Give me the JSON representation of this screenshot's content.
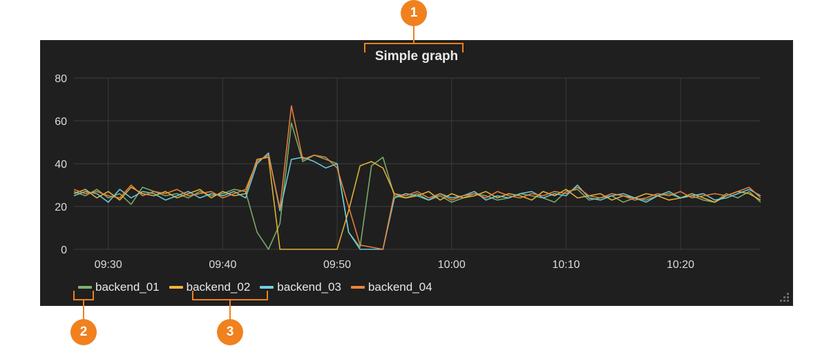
{
  "panel": {
    "title": "Simple graph"
  },
  "callouts": [
    "1",
    "2",
    "3"
  ],
  "colors": {
    "panel_bg": "#1f1f1f",
    "grid": "#3d3d3d",
    "callout": "#f0811e"
  },
  "chart_data": {
    "type": "line",
    "title": "Simple graph",
    "xlabel": "",
    "ylabel": "",
    "ylim": [
      0,
      80
    ],
    "yticks": [
      0,
      20,
      40,
      60,
      80
    ],
    "xlim": [
      "09:27",
      "10:27"
    ],
    "xticks": [
      "09:30",
      "09:40",
      "09:50",
      "10:00",
      "10:10",
      "10:20"
    ],
    "grid": true,
    "legend_position": "bottom-left",
    "x": [
      "09:27",
      "09:28",
      "09:29",
      "09:30",
      "09:31",
      "09:32",
      "09:33",
      "09:34",
      "09:35",
      "09:36",
      "09:37",
      "09:38",
      "09:39",
      "09:40",
      "09:41",
      "09:42",
      "09:43",
      "09:44",
      "09:45",
      "09:46",
      "09:47",
      "09:48",
      "09:49",
      "09:50",
      "09:51",
      "09:52",
      "09:53",
      "09:54",
      "09:55",
      "09:56",
      "09:57",
      "09:58",
      "09:59",
      "10:00",
      "10:01",
      "10:02",
      "10:03",
      "10:04",
      "10:05",
      "10:06",
      "10:07",
      "10:08",
      "10:09",
      "10:10",
      "10:11",
      "10:12",
      "10:13",
      "10:14",
      "10:15",
      "10:16",
      "10:17",
      "10:18",
      "10:19",
      "10:20",
      "10:21",
      "10:22",
      "10:23",
      "10:24",
      "10:25",
      "10:26",
      "10:27"
    ],
    "series": [
      {
        "name": "backend_01",
        "color": "#7eb26d",
        "values": [
          27,
          25,
          28,
          24,
          26,
          21,
          29,
          27,
          25,
          26,
          24,
          27,
          25,
          26,
          28,
          27,
          8,
          0,
          12,
          59,
          41,
          44,
          42,
          40,
          8,
          1,
          39,
          43,
          25,
          24,
          26,
          23,
          25,
          22,
          24,
          26,
          25,
          23,
          24,
          26,
          25,
          24,
          22,
          27,
          28,
          23,
          24,
          25,
          22,
          24,
          23,
          25,
          26,
          24,
          25,
          23,
          22,
          26,
          24,
          27,
          22
        ]
      },
      {
        "name": "backend_02",
        "color": "#eab839",
        "values": [
          26,
          28,
          24,
          27,
          23,
          29,
          26,
          25,
          27,
          24,
          26,
          28,
          24,
          27,
          25,
          26,
          42,
          43,
          0,
          0,
          0,
          0,
          0,
          0,
          18,
          39,
          41,
          38,
          26,
          24,
          25,
          27,
          23,
          26,
          24,
          25,
          27,
          24,
          26,
          25,
          23,
          27,
          25,
          28,
          24,
          25,
          26,
          23,
          25,
          24,
          26,
          25,
          23,
          24,
          26,
          24,
          22,
          25,
          27,
          26,
          23
        ]
      },
      {
        "name": "backend_03",
        "color": "#6ed0e0",
        "values": [
          25,
          27,
          26,
          22,
          28,
          24,
          27,
          26,
          23,
          25,
          27,
          24,
          26,
          25,
          27,
          24,
          40,
          45,
          18,
          42,
          43,
          41,
          38,
          40,
          8,
          0,
          0,
          0,
          24,
          26,
          25,
          23,
          26,
          24,
          25,
          27,
          23,
          25,
          24,
          26,
          27,
          24,
          26,
          25,
          30,
          24,
          23,
          25,
          26,
          24,
          22,
          25,
          27,
          24,
          25,
          26,
          23,
          24,
          26,
          28,
          25
        ]
      },
      {
        "name": "backend_04",
        "color": "#ef843c",
        "values": [
          28,
          26,
          27,
          25,
          24,
          30,
          25,
          27,
          26,
          28,
          25,
          26,
          27,
          24,
          26,
          28,
          41,
          44,
          19,
          67,
          42,
          44,
          43,
          38,
          20,
          2,
          1,
          0,
          26,
          25,
          27,
          24,
          26,
          23,
          25,
          26,
          24,
          27,
          25,
          24,
          26,
          25,
          27,
          26,
          29,
          25,
          24,
          26,
          25,
          23,
          24,
          26,
          25,
          27,
          24,
          25,
          26,
          25,
          27,
          29,
          24
        ]
      }
    ]
  }
}
